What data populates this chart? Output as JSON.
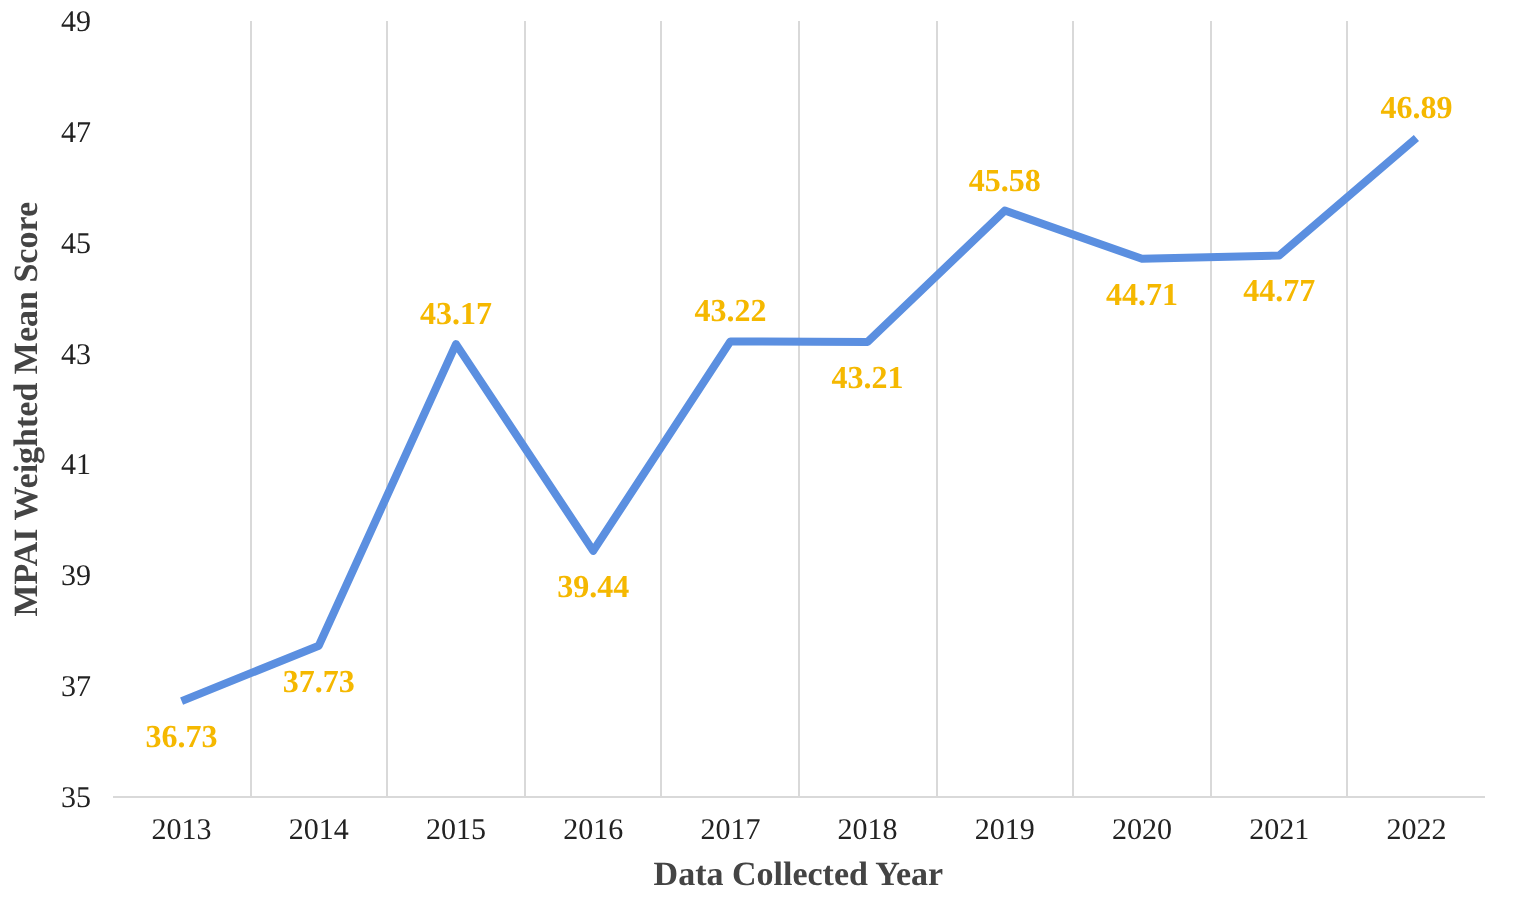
{
  "chart_data": {
    "type": "line",
    "xlabel": "Data Collected Year",
    "ylabel": "MPAI Weighted Mean Score",
    "categories": [
      "2013",
      "2014",
      "2015",
      "2016",
      "2017",
      "2018",
      "2019",
      "2020",
      "2021",
      "2022"
    ],
    "series": [
      {
        "color": "#5b8fe0",
        "values": [
          36.73,
          37.73,
          43.17,
          39.44,
          43.22,
          43.21,
          45.58,
          44.71,
          44.77,
          46.89
        ]
      }
    ],
    "ylim": [
      35,
      49
    ],
    "yticks": [
      35,
      37,
      39,
      41,
      43,
      45,
      47,
      49
    ],
    "grid": "x",
    "data_labels": true,
    "marker": "none",
    "line_style": "solid"
  }
}
